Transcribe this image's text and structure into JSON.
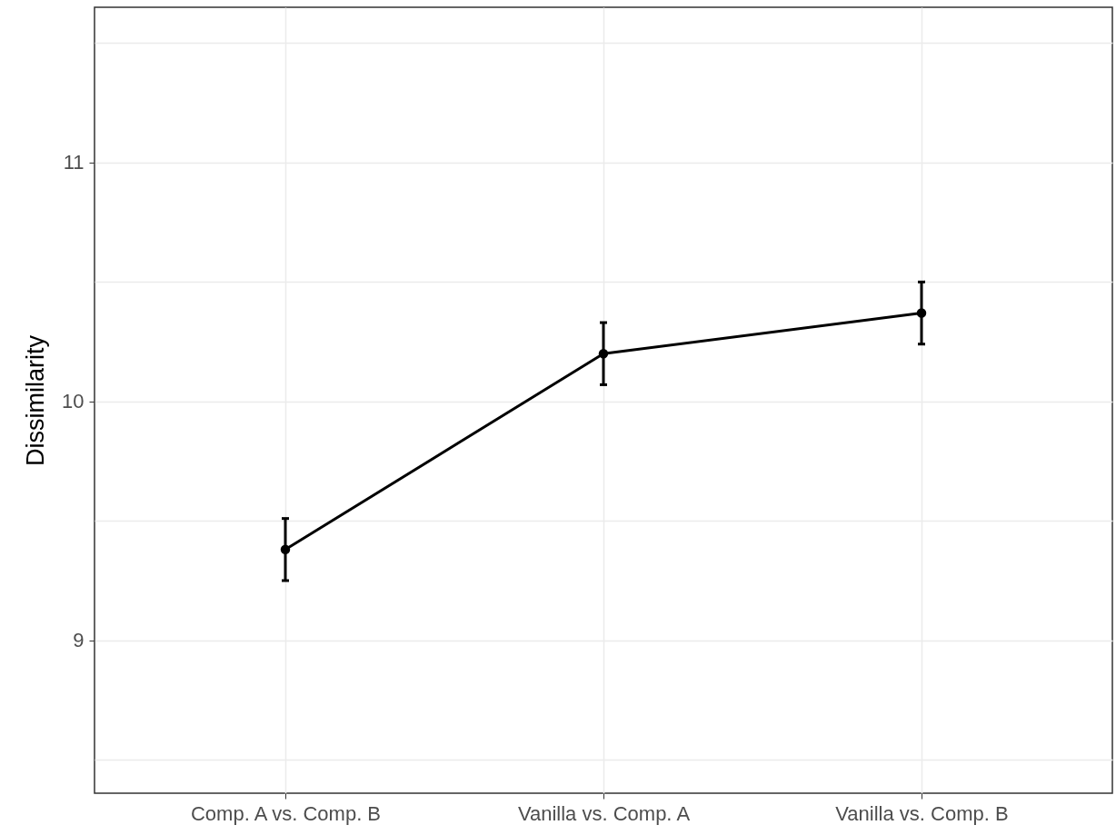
{
  "chart_data": {
    "type": "line",
    "ylabel": "Dissimilarity",
    "categories": [
      "Comp. A vs. Comp. B",
      "Vanilla vs. Comp. A",
      "Vanilla vs. Comp. B"
    ],
    "values": [
      9.38,
      10.2,
      10.37
    ],
    "color": "#000000",
    "errors": [
      0.13,
      0.13,
      0.13
    ],
    "ylim": [
      8.36,
      11.65
    ],
    "yticks": [
      {
        "value": 8.5,
        "label": null
      },
      9,
      {
        "value": 9.5,
        "label": null
      },
      10,
      {
        "value": 10.5,
        "label": null
      },
      11,
      {
        "value": 11.5,
        "label": null
      }
    ],
    "grid": true,
    "marker": "circle",
    "line_style": "solid"
  }
}
